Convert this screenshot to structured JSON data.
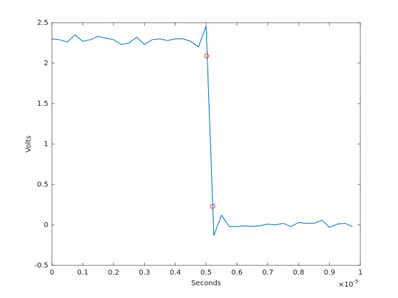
{
  "chart_data": {
    "type": "line",
    "xlabel": "Seconds",
    "ylabel": "Volts",
    "x_multiplier": {
      "base": "×10",
      "exponent": "-5"
    },
    "xlim": [
      0,
      1
    ],
    "xticks": [
      0,
      0.1,
      0.2,
      0.3,
      0.4,
      0.5,
      0.6,
      0.7,
      0.8,
      0.9,
      1
    ],
    "ylim": [
      -0.5,
      2.5
    ],
    "yticks": [
      -0.5,
      0,
      0.5,
      1,
      1.5,
      2,
      2.5
    ],
    "grid": false,
    "series": [
      {
        "color": "#0072bd",
        "marker": "none",
        "x": [
          0,
          0.025,
          0.05,
          0.075,
          0.1,
          0.125,
          0.15,
          0.175,
          0.2,
          0.225,
          0.25,
          0.275,
          0.3,
          0.325,
          0.35,
          0.375,
          0.4,
          0.425,
          0.45,
          0.475,
          0.5,
          0.525,
          0.55,
          0.575,
          0.6,
          0.625,
          0.65,
          0.675,
          0.7,
          0.725,
          0.75,
          0.775,
          0.8,
          0.825,
          0.85,
          0.875,
          0.9,
          0.925,
          0.95,
          0.975
        ],
        "values": [
          2.3,
          2.29,
          2.26,
          2.35,
          2.27,
          2.29,
          2.33,
          2.31,
          2.29,
          2.23,
          2.25,
          2.32,
          2.23,
          2.29,
          2.3,
          2.28,
          2.3,
          2.3,
          2.27,
          2.2,
          2.46,
          -0.13,
          0.12,
          -0.02,
          -0.02,
          -0.01,
          -0.02,
          -0.01,
          0.01,
          0.0,
          0.02,
          -0.02,
          0.03,
          0.02,
          0.02,
          0.06,
          -0.03,
          0.01,
          0.02,
          -0.02
        ]
      },
      {
        "color": "#ff0000",
        "marker": "circle",
        "x": [
          0.502,
          0.521
        ],
        "values": [
          2.09,
          0.23
        ]
      }
    ]
  }
}
